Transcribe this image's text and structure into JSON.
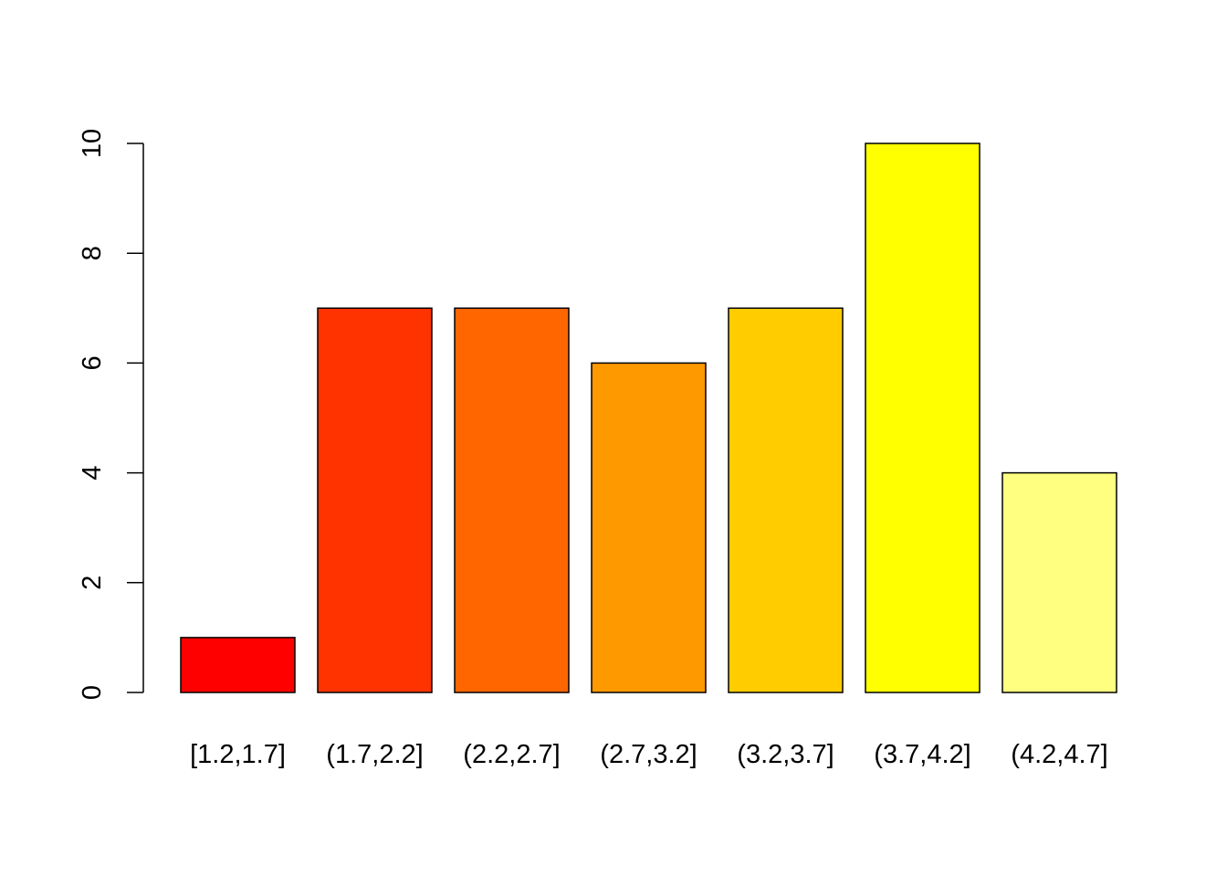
{
  "chart_data": {
    "type": "bar",
    "title": "",
    "xlabel": "",
    "ylabel": "",
    "categories": [
      "[1.2,1.7]",
      "(1.7,2.2]",
      "(2.2,2.7]",
      "(2.7,3.2]",
      "(3.2,3.7]",
      "(3.7,4.2]",
      "(4.2,4.7]"
    ],
    "values": [
      1,
      7,
      7,
      6,
      7,
      10,
      4
    ],
    "colors": [
      "#FF0000",
      "#FF3300",
      "#FF6600",
      "#FF9900",
      "#FFCC00",
      "#FFFF00",
      "#FFFF80"
    ],
    "ylim": [
      0,
      10
    ],
    "yticks": [
      0,
      2,
      4,
      6,
      8,
      10
    ],
    "ytick_labels": [
      "0",
      "2",
      "4",
      "6",
      "8",
      "10"
    ],
    "grid": false,
    "legend": "none"
  }
}
